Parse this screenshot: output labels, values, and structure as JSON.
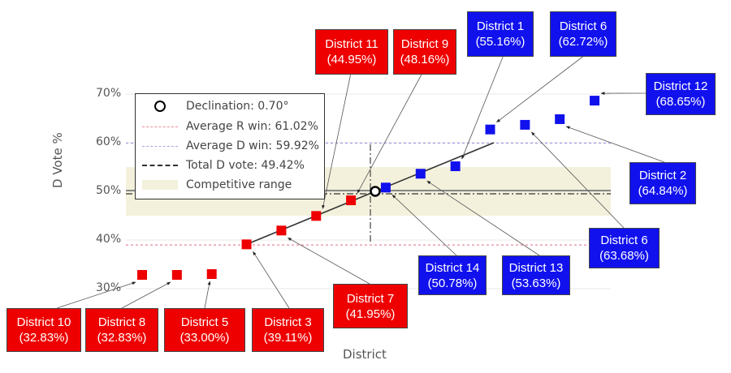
{
  "chart_data": {
    "type": "scatter",
    "title": "",
    "xlabel": "District",
    "ylabel": "D Vote %",
    "ylim": [
      30,
      70
    ],
    "yticks": [
      "30%",
      "40%",
      "50%",
      "60%",
      "70%"
    ],
    "grid": true,
    "points": [
      {
        "name": "District 10",
        "value": 32.83,
        "party": "R",
        "label": "District 10",
        "pct": "(32.83%)"
      },
      {
        "name": "District 8",
        "value": 32.83,
        "party": "R",
        "label": "District 8",
        "pct": "(32.83%)"
      },
      {
        "name": "District 5",
        "value": 33.0,
        "party": "R",
        "label": "District 5",
        "pct": "(33.00%)"
      },
      {
        "name": "District 3",
        "value": 39.11,
        "party": "R",
        "label": "District 3",
        "pct": "(39.11%)"
      },
      {
        "name": "District 7",
        "value": 41.95,
        "party": "R",
        "label": "District 7",
        "pct": "(41.95%)"
      },
      {
        "name": "District 11",
        "value": 44.95,
        "party": "R",
        "label": "District 11",
        "pct": "(44.95%)"
      },
      {
        "name": "District 9",
        "value": 48.16,
        "party": "R",
        "label": "District 9",
        "pct": "(48.16%)"
      },
      {
        "name": "District 14",
        "value": 50.78,
        "party": "D",
        "label": "District 14",
        "pct": "(50.78%)"
      },
      {
        "name": "District 13",
        "value": 53.63,
        "party": "D",
        "label": "District 13",
        "pct": "(53.63%)"
      },
      {
        "name": "District 1",
        "value": 55.16,
        "party": "D",
        "label": "District 1",
        "pct": "(55.16%)"
      },
      {
        "name": "District 6",
        "value": 62.72,
        "party": "D",
        "label": "District 6",
        "pct": "(62.72%)"
      },
      {
        "name": "District 6",
        "value": 63.68,
        "party": "D",
        "label": "District 6",
        "pct": "(63.68%)"
      },
      {
        "name": "District 2",
        "value": 64.84,
        "party": "D",
        "label": "District 2",
        "pct": "(64.84%)"
      },
      {
        "name": "District 12",
        "value": 68.65,
        "party": "D",
        "label": "District 12",
        "pct": "(68.65%)"
      }
    ],
    "declination_point": {
      "value": 50.0
    },
    "avg_r_win": 61.02,
    "avg_d_win": 59.92,
    "total_d_vote": 49.42,
    "competitive_range": [
      45,
      55
    ],
    "legend": {
      "position": "top-left",
      "items": [
        "Declination: 0.70°",
        "Average R win: 61.02%",
        "Average D win: 59.92%",
        "Total D vote: 49.42%",
        "Competitive range"
      ]
    },
    "colors": {
      "r": "#ee0000",
      "d": "#1111ee",
      "band": "#f3f1dc",
      "r_line": "#e88a9a",
      "d_line": "#a9a6e0"
    }
  }
}
